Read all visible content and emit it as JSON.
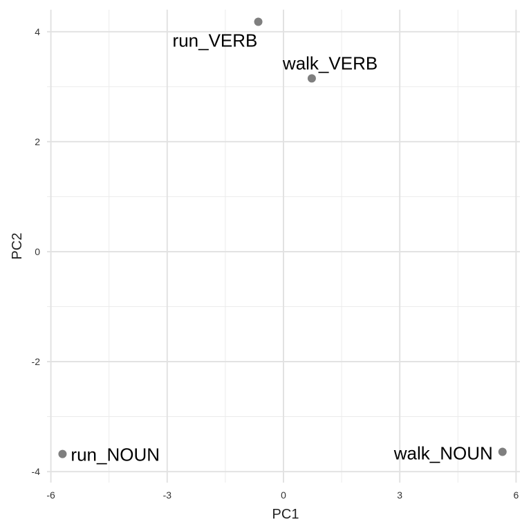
{
  "chart_data": {
    "type": "scatter",
    "title": "",
    "xlabel": "PC1",
    "ylabel": "PC2",
    "xlim": [
      -6.1,
      6.1
    ],
    "ylim": [
      -4.2,
      4.4
    ],
    "x_ticks": [
      -6,
      -3,
      0,
      3,
      6
    ],
    "y_ticks": [
      -4,
      -2,
      0,
      2,
      4
    ],
    "x_minor": [
      -4.5,
      -1.5,
      1.5,
      4.5
    ],
    "y_minor": [
      -3,
      -1,
      1,
      3
    ],
    "grid": true,
    "point_color": "#7f7f7f",
    "points": [
      {
        "label": "run_VERB",
        "x": -0.65,
        "y": 4.18
      },
      {
        "label": "walk_VERB",
        "x": 0.73,
        "y": 3.15
      },
      {
        "label": "run_NOUN",
        "x": -5.7,
        "y": -3.68
      },
      {
        "label": "walk_NOUN",
        "x": 5.65,
        "y": -3.64
      }
    ]
  }
}
